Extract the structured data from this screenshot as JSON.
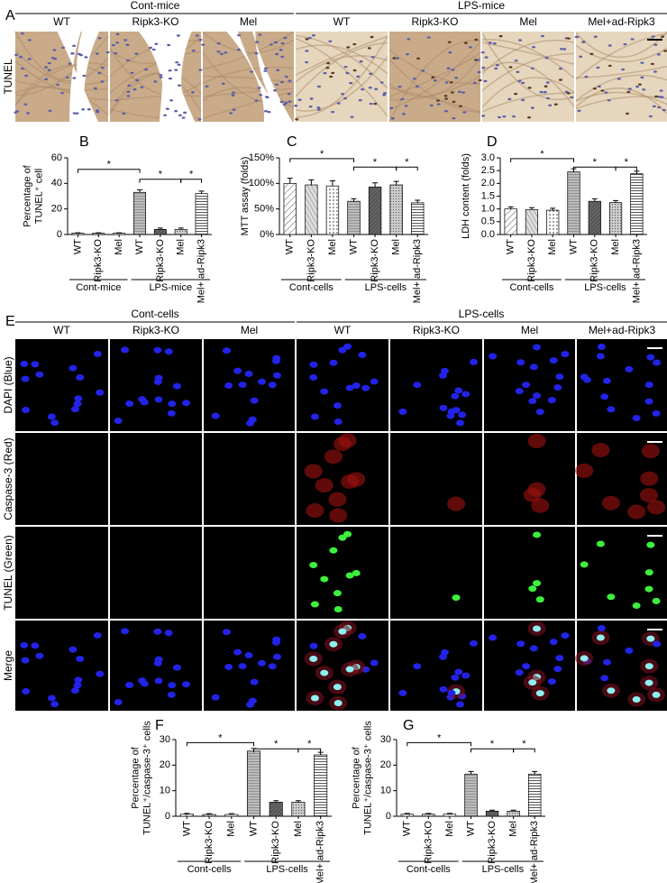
{
  "panel_a": {
    "label": "A",
    "groups": [
      "Cont-mice",
      "LPS-mice"
    ],
    "columns": [
      "WT",
      "Ripk3-KO",
      "Mel",
      "WT",
      "Ripk3-KO",
      "Mel",
      "Mel+ad-Ripk3"
    ],
    "row_label": "TUNEL"
  },
  "panel_e": {
    "label": "E",
    "groups": [
      "Cont-cells",
      "LPS-cells"
    ],
    "columns": [
      "WT",
      "Ripk3-KO",
      "Mel",
      "WT",
      "Ripk3-KO",
      "Mel",
      "Mel+ad-Ripk3"
    ],
    "rows": [
      "DAPI (Blue)",
      "Caspase-3 (Red)",
      "TUNEL (Green)",
      "Merge"
    ]
  },
  "chart_data": [
    {
      "type": "bar",
      "label": "B",
      "ylabel": [
        "Percentage of",
        "TUNEL⁺ cell"
      ],
      "categories": [
        "WT",
        "Ripk3-KO",
        "Mel",
        "WT",
        "Ripk3-KO",
        "Mel",
        "Mel+ ad-Ripk3"
      ],
      "groups": [
        "Cont-mice",
        "LPS-mice"
      ],
      "values": [
        1,
        1,
        1,
        33,
        4,
        4,
        32
      ],
      "errors": [
        0.3,
        0.3,
        0.3,
        2,
        1,
        1,
        2
      ],
      "ylim": [
        0,
        60
      ],
      "yticks": [
        0,
        20,
        40,
        60
      ],
      "significance": [
        "*",
        "*",
        "*"
      ]
    },
    {
      "type": "bar",
      "label": "C",
      "ylabel": [
        "MTT assay (folds)"
      ],
      "categories": [
        "WT",
        "Ripk3-KO",
        "Mel",
        "WT",
        "Ripk3-KO",
        "Mel",
        "Mel+ ad-Ripk3"
      ],
      "groups": [
        "Cont-cells",
        "LPS-cells"
      ],
      "values": [
        100,
        97,
        95,
        65,
        93,
        97,
        62
      ],
      "errors": [
        10,
        10,
        10,
        5,
        8,
        7,
        5
      ],
      "ylim": [
        0,
        150
      ],
      "yticks": [
        {
          "value": 0,
          "label": "0%"
        },
        {
          "value": 50,
          "label": "50%"
        },
        {
          "value": 100,
          "label": "100%"
        },
        {
          "value": 150,
          "label": "150%"
        }
      ],
      "significance": [
        "*",
        "*",
        "*"
      ]
    },
    {
      "type": "bar",
      "label": "D",
      "ylabel": [
        "LDH content (folds)"
      ],
      "categories": [
        "WT",
        "Ripk3-KO",
        "Mel",
        "WT",
        "Ripk3-KO",
        "Mel",
        "Mel+ ad-Ripk3"
      ],
      "groups": [
        "Cont-cells",
        "LPS-cells"
      ],
      "values": [
        1.0,
        0.97,
        0.95,
        2.45,
        1.3,
        1.25,
        2.38
      ],
      "errors": [
        0.08,
        0.08,
        0.08,
        0.12,
        0.1,
        0.08,
        0.1
      ],
      "ylim": [
        0,
        3
      ],
      "yticks": [
        {
          "value": 0,
          "label": "0.0"
        },
        {
          "value": 0.5,
          "label": "0.5"
        },
        {
          "value": 1,
          "label": "1.0"
        },
        {
          "value": 1.5,
          "label": "1.5"
        },
        {
          "value": 2,
          "label": "2.0"
        },
        {
          "value": 2.5,
          "label": "2.5"
        },
        {
          "value": 3,
          "label": "3.0"
        }
      ],
      "significance": [
        "*",
        "*",
        "*"
      ]
    },
    {
      "type": "bar",
      "label": "F",
      "ylabel": [
        "Percentage of",
        "TUNEL⁺/caspase-3⁺ cells"
      ],
      "categories": [
        "WT",
        "Ripk3-KO",
        "Mel",
        "WT",
        "Ripk3-KO",
        "Mel",
        "Mel+ ad-Ripk3"
      ],
      "groups": [
        "Cont-cells",
        "LPS-cells"
      ],
      "values": [
        0.8,
        0.7,
        0.7,
        25.5,
        5.5,
        5.5,
        24
      ],
      "errors": [
        0.3,
        0.3,
        0.3,
        1,
        0.6,
        0.6,
        1
      ],
      "ylim": [
        0,
        30
      ],
      "yticks": [
        0,
        10,
        20,
        30
      ],
      "significance": [
        "*",
        "*",
        "*"
      ]
    },
    {
      "type": "bar",
      "label": "G",
      "ylabel": [
        "Percentage of",
        "TUNEL⁺/caspase-3⁺ cells"
      ],
      "categories": [
        "WT",
        "Ripk3-KO",
        "Mel",
        "WT",
        "Ripk3-KO",
        "Mel",
        "Mel+ ad-Ripk3"
      ],
      "groups": [
        "Cont-cells",
        "LPS-cells"
      ],
      "values": [
        0.8,
        0.8,
        0.8,
        16.5,
        2,
        2,
        16.5
      ],
      "errors": [
        0.3,
        0.3,
        0.3,
        1,
        0.4,
        0.4,
        1
      ],
      "ylim": [
        0,
        30
      ],
      "yticks": [
        0,
        10,
        20,
        30
      ],
      "significance": [
        "*",
        "*",
        "*"
      ]
    }
  ]
}
